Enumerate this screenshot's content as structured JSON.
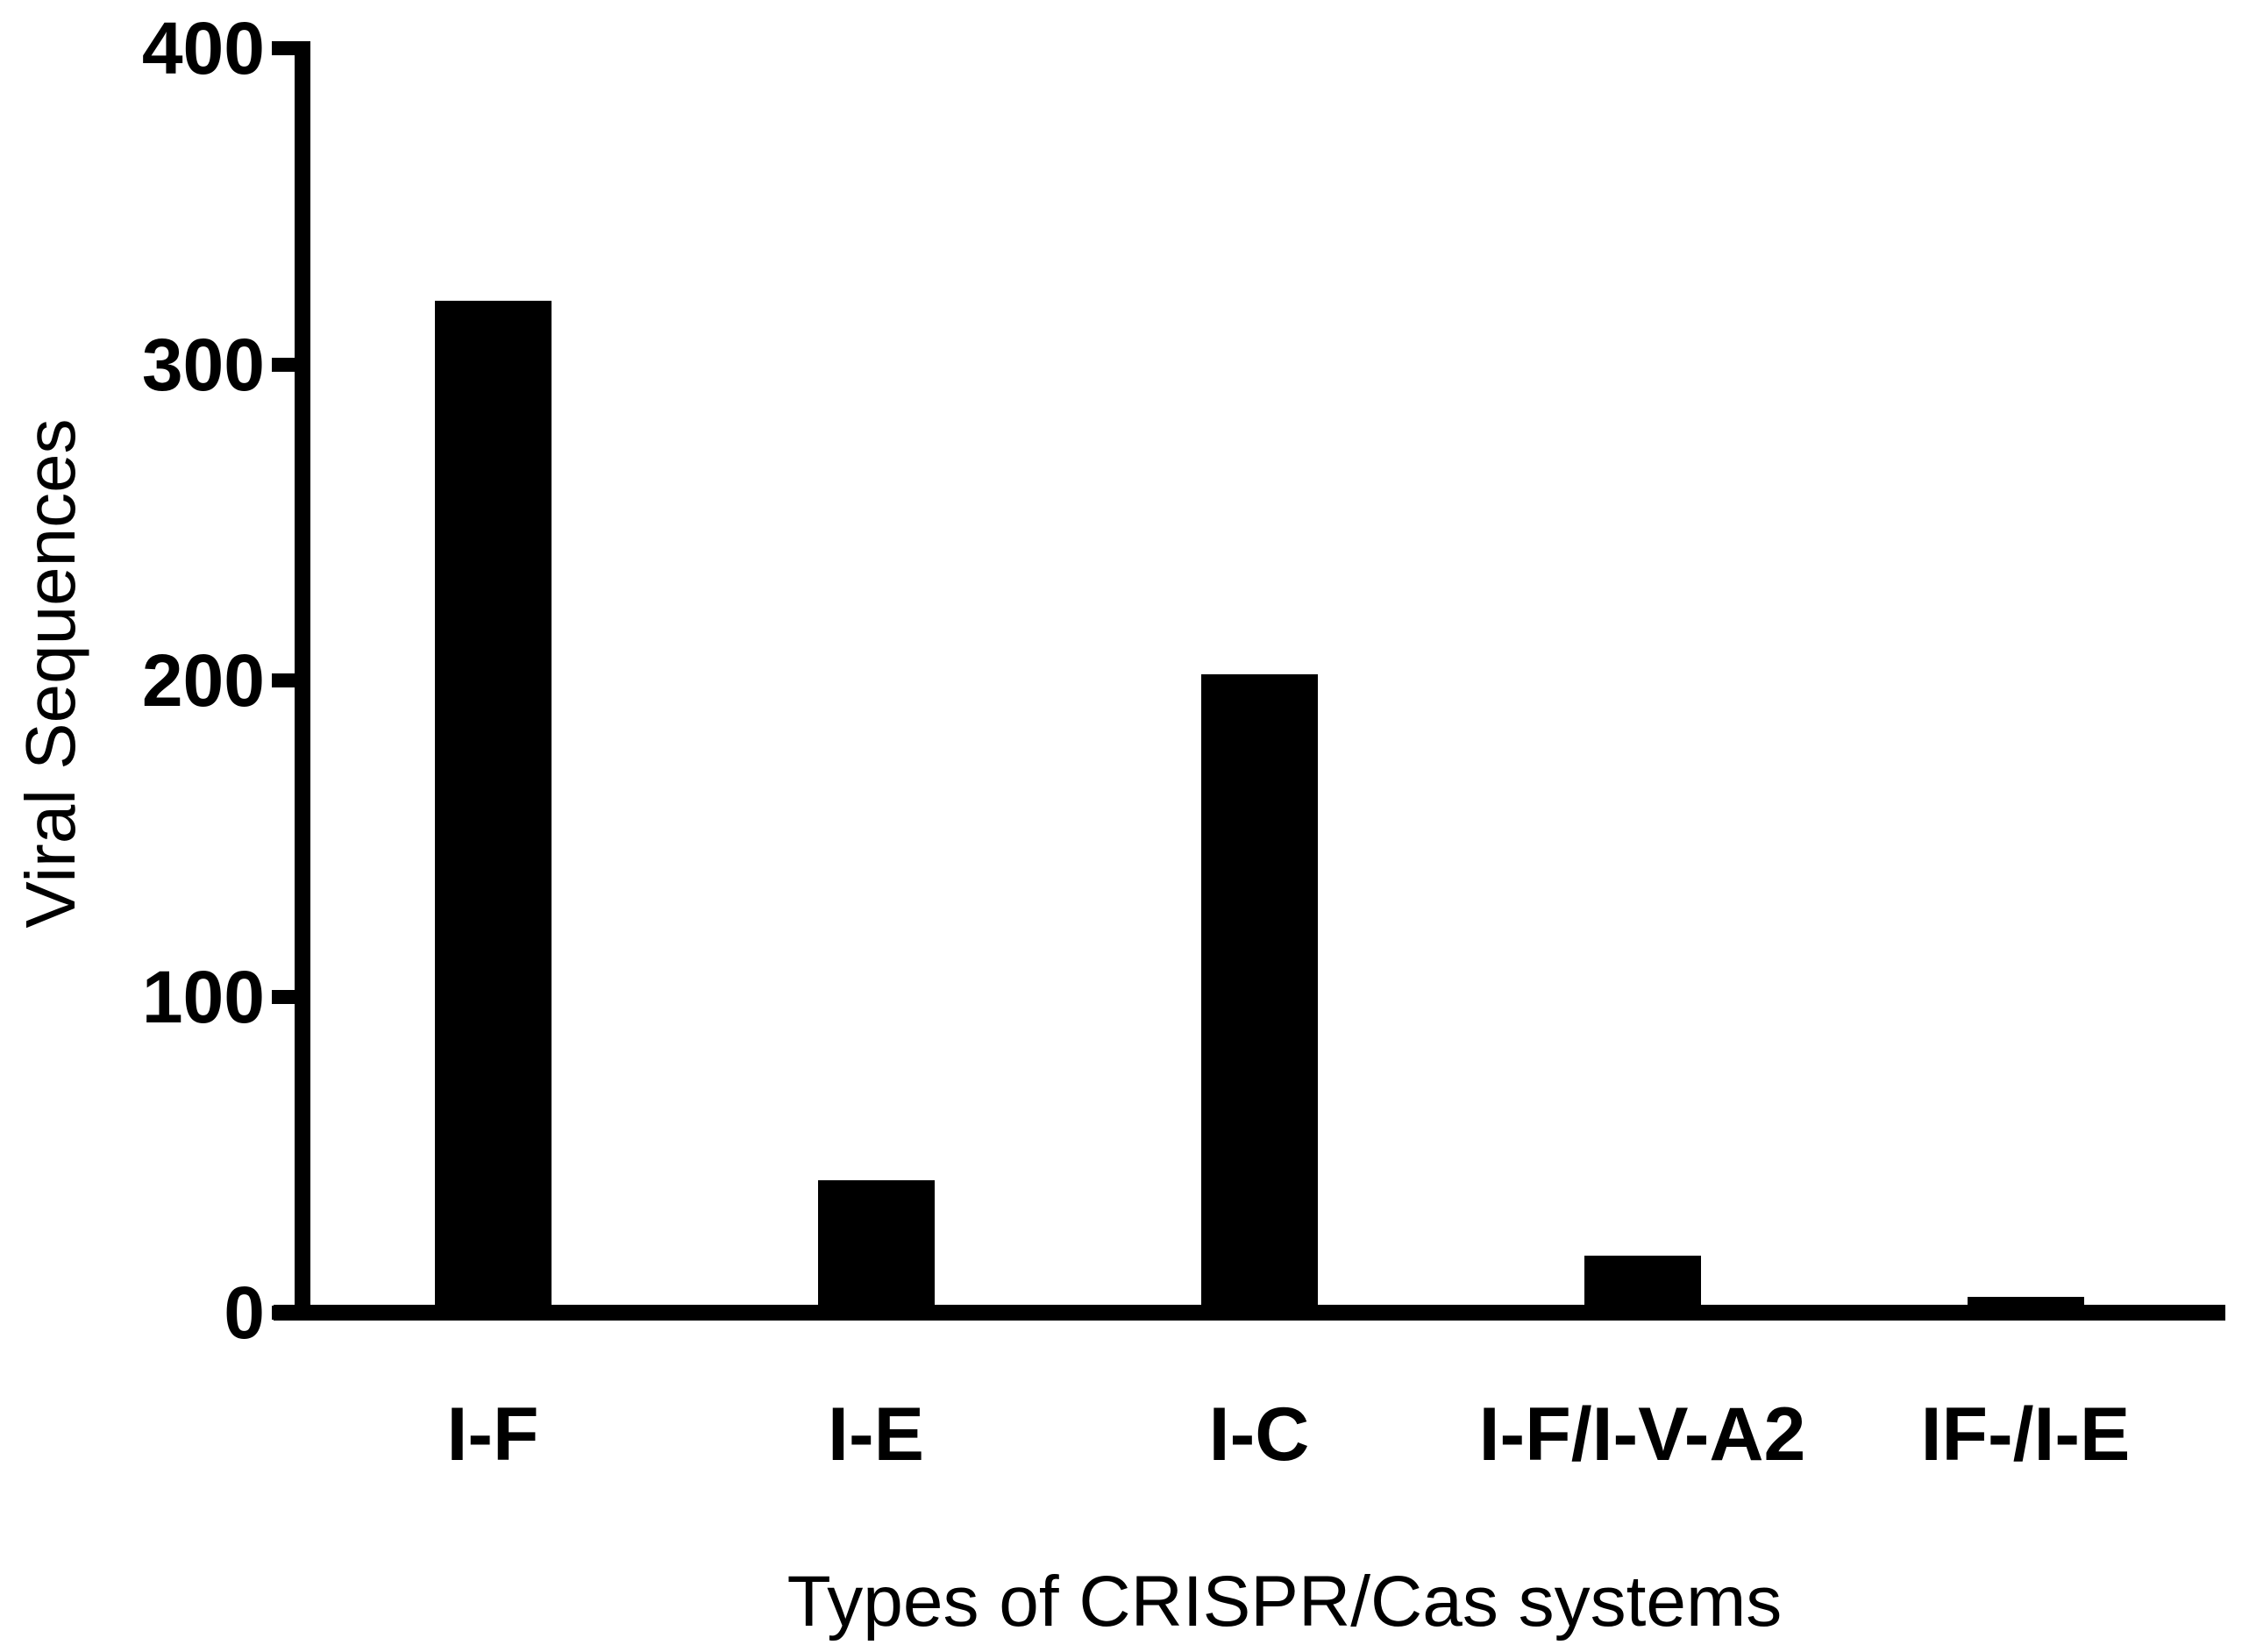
{
  "chart_data": {
    "type": "bar",
    "title": "",
    "xlabel": "Types of CRISPR/Cas systems",
    "ylabel": "Viral Sequences",
    "categories": [
      "I-F",
      "I-E",
      "I-C",
      "I-F/I-V-A2",
      "IF-/I-E"
    ],
    "values": [
      320,
      42,
      202,
      18,
      5
    ],
    "yticks": [
      0,
      100,
      200,
      300,
      400
    ],
    "ylim": [
      0,
      400
    ],
    "bar_color": "#000000",
    "axis_color": "#000000",
    "background_color": "#ffffff",
    "text_color": "#000000",
    "grid": "off",
    "legend": "none"
  }
}
